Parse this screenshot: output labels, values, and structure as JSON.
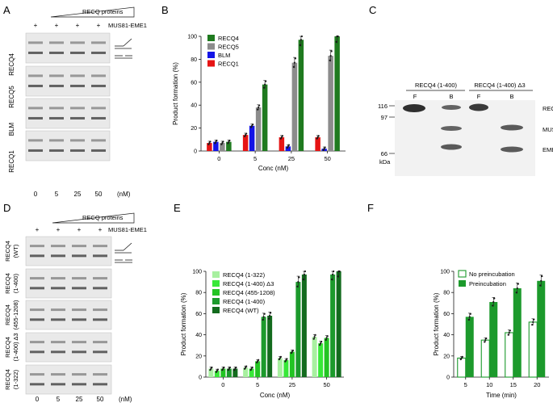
{
  "panel_letters": [
    "A",
    "B",
    "C",
    "D",
    "E",
    "F"
  ],
  "colors": {
    "recq4": "#1f7a1f",
    "recq5": "#8c8c8c",
    "blm": "#1414e6",
    "recq1": "#e61414",
    "g1": "#a8f0a0",
    "g2": "#38e838",
    "g3": "#23c423",
    "g4": "#1c9a2c",
    "g5": "#136b1e",
    "axis": "#1a1a1a"
  },
  "panelA": {
    "header": "RECQ proteins",
    "enzyme": "MUS81-EME1",
    "plus": [
      "+",
      "+",
      "+",
      "+"
    ],
    "rows": [
      "RECQ4",
      "RECQ5",
      "BLM",
      "RECQ1"
    ],
    "lanes": [
      "0",
      "5",
      "25",
      "50"
    ],
    "unit": "(nM)"
  },
  "panelC": {
    "group1": "RECQ4 (1-400)",
    "group2": "RECQ4 (1-400) Δ3",
    "lane_labels": [
      "F",
      "B",
      "F",
      "B"
    ],
    "markers": [
      "116",
      "97",
      "66"
    ],
    "unit": "kDa",
    "bands": [
      "RECQ4",
      "MUS81",
      "EME1"
    ]
  },
  "panelD": {
    "header": "RECQ proteins",
    "enzyme": "MUS81-EME1",
    "plus": [
      "+",
      "+",
      "+",
      "+"
    ],
    "rows": [
      [
        "RECQ4",
        "(WT)"
      ],
      [
        "RECQ4",
        "(1-400)"
      ],
      [
        "RECQ4",
        "(455-1208)"
      ],
      [
        "RECQ4",
        "(1-400) Δ3"
      ],
      [
        "RECQ4",
        "(1-322)"
      ]
    ],
    "lanes": [
      "0",
      "5",
      "25",
      "50"
    ],
    "unit": "(nM)"
  },
  "chart_data": [
    {
      "panel": "B",
      "type": "bar",
      "categories": [
        "0",
        "5",
        "25",
        "50"
      ],
      "xlabel": "Conc (nM)",
      "ylabel": "Product formation (%)",
      "ylim": [
        0,
        100
      ],
      "yticks": [
        "0",
        "20",
        "40",
        "60",
        "80",
        "100"
      ],
      "legend_position": "top-left",
      "series": [
        {
          "name": "RECQ1",
          "color_key": "recq1",
          "values": [
            7,
            14,
            12,
            12
          ]
        },
        {
          "name": "BLM",
          "color_key": "blm",
          "values": [
            8,
            22,
            4,
            2
          ]
        },
        {
          "name": "RECQ5",
          "color_key": "recq5",
          "values": [
            7,
            38,
            77,
            83
          ]
        },
        {
          "name": "RECQ4",
          "color_key": "recq4",
          "values": [
            8,
            58,
            97,
            100
          ]
        }
      ],
      "legend_order": [
        "RECQ4",
        "RECQ5",
        "BLM",
        "RECQ1"
      ]
    },
    {
      "panel": "E",
      "type": "bar",
      "categories": [
        "0",
        "5",
        "25",
        "50"
      ],
      "xlabel": "Conc (nM)",
      "ylabel": "Product formation (%)",
      "ylim": [
        0,
        100
      ],
      "yticks": [
        "0",
        "20",
        "40",
        "60",
        "80",
        "100"
      ],
      "legend_position": "top-left",
      "series": [
        {
          "name": "RECQ4 (1-322)",
          "color_key": "g1",
          "values": [
            8,
            9,
            18,
            38
          ]
        },
        {
          "name": "RECQ4 (1-400) Δ3",
          "color_key": "g2",
          "values": [
            6,
            8,
            16,
            32
          ]
        },
        {
          "name": "RECQ4 (455-1208)",
          "color_key": "g3",
          "values": [
            8,
            15,
            24,
            37
          ]
        },
        {
          "name": "RECQ4 (1-400)",
          "color_key": "g4",
          "values": [
            8,
            57,
            90,
            97
          ]
        },
        {
          "name": "RECQ4 (WT)",
          "color_key": "g5",
          "values": [
            8,
            58,
            97,
            100
          ]
        }
      ]
    },
    {
      "panel": "F",
      "type": "bar",
      "categories": [
        "5",
        "10",
        "15",
        "20"
      ],
      "xlabel": "Time (min)",
      "ylabel": "Product formation (%)",
      "ylim": [
        0,
        100
      ],
      "yticks": [
        "0",
        "20",
        "40",
        "60",
        "80",
        "100"
      ],
      "legend_position": "top-left",
      "series": [
        {
          "name": "No preincubation",
          "color_key": "g4",
          "hollow": true,
          "values": [
            18,
            35,
            42,
            52
          ]
        },
        {
          "name": "Preincubation",
          "color_key": "g4",
          "values": [
            57,
            71,
            84,
            91
          ]
        }
      ]
    }
  ]
}
